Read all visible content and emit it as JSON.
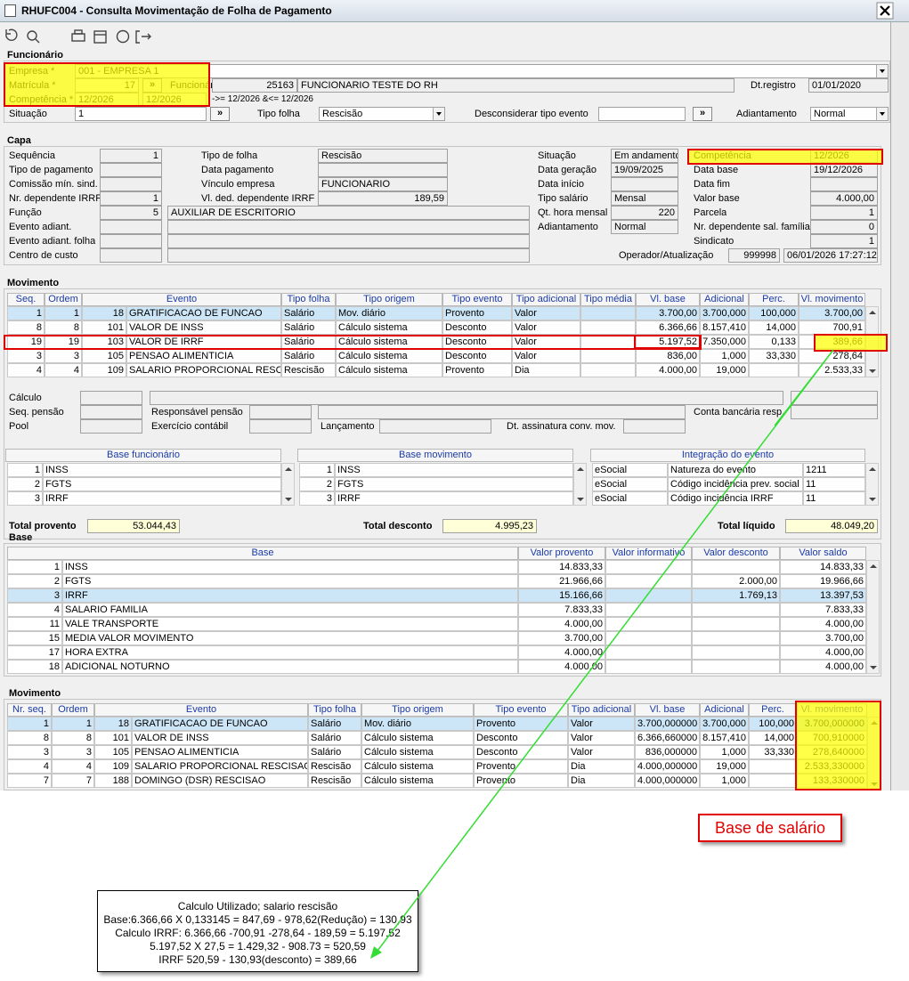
{
  "window": {
    "title": "RHUFC004 - Consulta Movimentação de Folha de Pagamento"
  },
  "funcionario": {
    "title": "Funcionário",
    "button": "»",
    "competencia_filtro": "->= 12/2026 &<= 12/2026",
    "fields": [
      {
        "label": "Empresa *",
        "value": "001 - EMPRESA 1"
      },
      {
        "label": "Matrícula *",
        "value": "17"
      },
      {
        "label": "Funcionário",
        "value": "25163",
        "detail": "FUNCIONARIO TESTE DO RH"
      },
      {
        "label": "Dt.registro",
        "value": "01/01/2020"
      },
      {
        "label": "Competência *",
        "value": "12/2026",
        "detail": "12/2026"
      },
      {
        "label": "Situação",
        "value": "1"
      },
      {
        "label": "Tipo folha",
        "value": "Rescisão"
      },
      {
        "label": "Desconsiderar tipo evento"
      },
      {
        "label": "Adiantamento",
        "value": "Normal"
      }
    ]
  },
  "capa": {
    "title": "Capa",
    "fields": [
      {
        "label": "Sequência",
        "value": "1"
      },
      {
        "label": "Tipo de pagamento"
      },
      {
        "label": "Comissão mín. sind."
      },
      {
        "label": "Nr. dependente IRRF",
        "value": "1"
      },
      {
        "label": "Função",
        "value": "5",
        "detail": "AUXILIAR DE ESCRITORIO"
      },
      {
        "label": "Evento adiant."
      },
      {
        "label": "Evento adiant. folha"
      },
      {
        "label": "Centro de custo"
      },
      {
        "label": "Tipo de folha",
        "value": "Rescisão"
      },
      {
        "label": "Data pagamento"
      },
      {
        "label": "Vínculo empresa",
        "value": "FUNCIONARIO"
      },
      {
        "label": "Vl. ded. dependente IRRF",
        "value": "189,59"
      },
      {
        "label": "Situação",
        "value": "Em andamento"
      },
      {
        "label": "Data geração",
        "value": "19/09/2025"
      },
      {
        "label": "Data início"
      },
      {
        "label": "Tipo salário",
        "value": "Mensal"
      },
      {
        "label": "Qt. hora mensal",
        "value": "220"
      },
      {
        "label": "Adiantamento",
        "value": "Normal"
      },
      {
        "label": "Operador/Atualização",
        "value": "999998",
        "detail": "06/01/2026 17:27:12"
      },
      {
        "label": "Competência",
        "value": "12/2026"
      },
      {
        "label": "Data base",
        "value": "19/12/2026"
      },
      {
        "label": "Data fim"
      },
      {
        "label": "Valor base",
        "value": "4.000,00"
      },
      {
        "label": "Parcela",
        "value": "1"
      },
      {
        "label": "Nr. dependente sal. família",
        "value": "0"
      },
      {
        "label": "Sindicato",
        "value": "1"
      }
    ]
  },
  "movimento": {
    "title": "Movimento",
    "columns": [
      "Seq.",
      "Ordem",
      "Evento",
      "Tipo folha",
      "Tipo origem",
      "Tipo evento",
      "Tipo adicional",
      "Tipo média",
      "Vl. base",
      "Adicional",
      "Perc.",
      "Vl. movimento"
    ],
    "rows": [
      [
        "1",
        "1",
        "18",
        "GRATIFICACAO DE FUNCAO",
        "Salário",
        "Mov. diário",
        "Provento",
        "Valor",
        null,
        "3.700,00",
        "3.700,000",
        "100,000",
        "3.700,00"
      ],
      [
        "8",
        "8",
        "101",
        "VALOR DE INSS",
        "Salário",
        "Cálculo sistema",
        "Desconto",
        "Valor",
        null,
        "6.366,66",
        "8.157,410",
        "14,000",
        "700,91"
      ],
      [
        "19",
        "19",
        "103",
        "VALOR DE IRRF",
        "Salário",
        "Cálculo sistema",
        "Desconto",
        "Valor",
        null,
        "5.197,52",
        "7.350,000",
        "0,133",
        "389,66"
      ],
      [
        "3",
        "3",
        "105",
        "PENSAO ALIMENTICIA",
        "Salário",
        "Cálculo sistema",
        "Desconto",
        "Valor",
        null,
        "836,00",
        "1,000",
        "33,330",
        "278,64"
      ],
      [
        "4",
        "4",
        "109",
        "SALARIO PROPORCIONAL RESCISA",
        "Rescisão",
        "Cálculo sistema",
        "Provento",
        "Dia",
        null,
        "4.000,00",
        "19,000",
        null,
        "2.533,33"
      ]
    ],
    "extra_labels": [
      "Cálculo",
      "Seq. pensão",
      "Pool",
      "Responsável pensão",
      "Exercício contábil",
      "Lançamento",
      "Dt. assinatura conv. mov.",
      "Conta bancária resp."
    ]
  },
  "base_funcionario": {
    "title": "Base funcionário",
    "rows": [
      [
        "1",
        "INSS"
      ],
      [
        "2",
        "FGTS"
      ],
      [
        "3",
        "IRRF"
      ]
    ]
  },
  "base_movimento": {
    "title": "Base movimento",
    "rows": [
      [
        "1",
        "INSS"
      ],
      [
        "2",
        "FGTS"
      ],
      [
        "3",
        "IRRF"
      ]
    ]
  },
  "integracao_evento": {
    "title": "Integração do evento",
    "rows": [
      [
        "eSocial",
        "Natureza do evento",
        "1211"
      ],
      [
        "eSocial",
        "Código incidência prev. social",
        "11"
      ],
      [
        "eSocial",
        "Código incidência IRRF",
        "11"
      ]
    ]
  },
  "totais": [
    {
      "label": "Total provento",
      "value": "53.044,43"
    },
    {
      "label": "Total desconto",
      "value": "4.995,23"
    },
    {
      "label": "Total líquido",
      "value": "48.049,20"
    }
  ],
  "base": {
    "title": "Base",
    "columns": [
      "Base",
      "Valor provento",
      "Valor informativo",
      "Valor desconto",
      "Valor saldo"
    ],
    "rows": [
      [
        "1",
        "INSS",
        "14.833,33",
        null,
        null,
        "14.833,33"
      ],
      [
        "2",
        "FGTS",
        "21.966,66",
        null,
        "2.000,00",
        "19.966,66"
      ],
      [
        "3",
        "IRRF",
        "15.166,66",
        null,
        "1.769,13",
        "13.397,53"
      ],
      [
        "4",
        "SALARIO FAMILIA",
        "7.833,33",
        null,
        null,
        "7.833,33"
      ],
      [
        "11",
        "VALE TRANSPORTE",
        "4.000,00",
        null,
        null,
        "4.000,00"
      ],
      [
        "15",
        "MEDIA VALOR MOVIMENTO",
        "3.700,00",
        null,
        null,
        "3.700,00"
      ],
      [
        "17",
        "HORA EXTRA",
        "4.000,00",
        null,
        null,
        "4.000,00"
      ],
      [
        "18",
        "ADICIONAL NOTURNO",
        "4.000,00",
        null,
        null,
        "4.000,00"
      ]
    ]
  },
  "movimento_detalhe": {
    "title": "Movimento",
    "columns": [
      "Nr. seq.",
      "Ordem",
      "Evento",
      "Tipo folha",
      "Tipo origem",
      "Tipo evento",
      "Tipo adicional",
      "Vl. base",
      "Adicional",
      "Perc.",
      "Vl. movimento"
    ],
    "rows": [
      [
        "1",
        "1",
        "18",
        "GRATIFICACAO DE FUNCAO",
        "Salário",
        "Mov. diário",
        "Provento",
        "Valor",
        "3.700,000000",
        "3.700,000",
        "100,000",
        "3.700,000000"
      ],
      [
        "8",
        "8",
        "101",
        "VALOR DE INSS",
        "Salário",
        "Cálculo sistema",
        "Desconto",
        "Valor",
        "6.366,660000",
        "8.157,410",
        "14,000",
        "700,910000"
      ],
      [
        "3",
        "3",
        "105",
        "PENSAO ALIMENTICIA",
        "Salário",
        "Cálculo sistema",
        "Desconto",
        "Valor",
        "836,000000",
        "1,000",
        "33,330",
        "278,640000"
      ],
      [
        "4",
        "4",
        "109",
        "SALARIO PROPORCIONAL RESCISAO",
        "Rescisão",
        "Cálculo sistema",
        "Provento",
        "Dia",
        "4.000,000000",
        "19,000",
        null,
        "2.533,330000"
      ],
      [
        "7",
        "7",
        "188",
        "DOMINGO (DSR) RESCISAO",
        "Rescisão",
        "Cálculo sistema",
        "Provento",
        "Dia",
        "4.000,000000",
        "1,000",
        null,
        "133,330000"
      ]
    ]
  },
  "annotations": {
    "base_salario": "Base de salário",
    "note": [
      "Calculo Utilizado; salario rescisão",
      "Base:6.366,66 X 0,133145 = 847,69 - 978,62(Redução) = 130,93",
      "Calculo IRRF: 6.366,66 -700,91 -278,64 - 189,59 = 5.197,52",
      "5.197,52 X 27,5 = 1.429,32 - 908.73 = 520,59",
      "IRRF 520,59 - 130,93(desconto) = 389,66"
    ]
  }
}
